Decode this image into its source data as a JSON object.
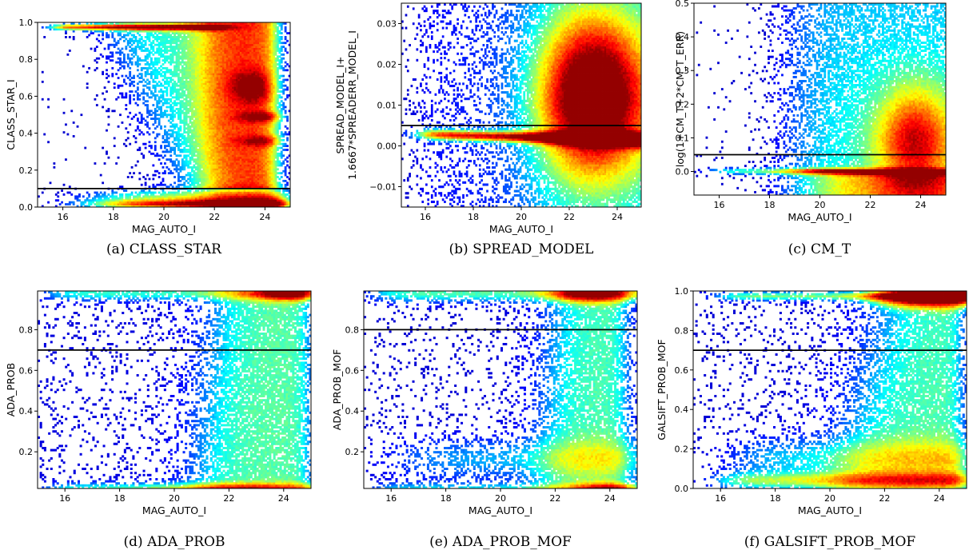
{
  "chart_data": [
    {
      "type": "heatmap",
      "caption": "(a) CLASS_STAR",
      "xlabel": "MAG_AUTO_I",
      "ylabel": [
        "CLASS_STAR_I"
      ],
      "xlim": [
        15,
        25
      ],
      "ylim": [
        0,
        1.0
      ],
      "xticks": [
        {
          "value": 16,
          "label": "16"
        },
        {
          "value": 18,
          "label": "18"
        },
        {
          "value": 20,
          "label": "20"
        },
        {
          "value": 22,
          "label": "22"
        },
        {
          "value": 24,
          "label": "24"
        }
      ],
      "yticks": [
        {
          "value": 0.0,
          "label": "0.0"
        },
        {
          "value": 0.2,
          "label": "0.2"
        },
        {
          "value": 0.4,
          "label": "0.4"
        },
        {
          "value": 0.6,
          "label": "0.6"
        },
        {
          "value": 0.8,
          "label": "0.8"
        },
        {
          "value": 1.0,
          "label": "1.0"
        }
      ],
      "cut_line": 0.1,
      "colormap": "jet",
      "density_pattern": "class_star"
    },
    {
      "type": "heatmap",
      "caption": "(b) SPREAD_MODEL",
      "xlabel": "MAG_AUTO_I",
      "ylabel": [
        "SPREAD_MODEL_I+",
        "1.6667*SPREADERR_MODEL_I"
      ],
      "xlim": [
        15,
        25
      ],
      "ylim": [
        -0.015,
        0.035
      ],
      "xticks": [
        {
          "value": 16,
          "label": "16"
        },
        {
          "value": 18,
          "label": "18"
        },
        {
          "value": 20,
          "label": "20"
        },
        {
          "value": 22,
          "label": "22"
        },
        {
          "value": 24,
          "label": "24"
        }
      ],
      "yticks": [
        {
          "value": -0.01,
          "label": "−0.01"
        },
        {
          "value": 0.0,
          "label": "0.00"
        },
        {
          "value": 0.01,
          "label": "0.01"
        },
        {
          "value": 0.02,
          "label": "0.02"
        },
        {
          "value": 0.03,
          "label": "0.03"
        }
      ],
      "cut_line": 0.005,
      "colormap": "jet",
      "density_pattern": "spread_model"
    },
    {
      "type": "heatmap",
      "caption": "(c) CM_T",
      "xlabel": "MAG_AUTO_I",
      "ylabel": [
        "log(1+CM_T+2*CM_T_ERR)"
      ],
      "xlim": [
        15,
        25
      ],
      "ylim": [
        -0.07,
        0.5
      ],
      "xticks": [
        {
          "value": 16,
          "label": "16"
        },
        {
          "value": 18,
          "label": "18"
        },
        {
          "value": 20,
          "label": "20"
        },
        {
          "value": 22,
          "label": "22"
        },
        {
          "value": 24,
          "label": "24"
        }
      ],
      "yticks": [
        {
          "value": 0.0,
          "label": "0.0"
        },
        {
          "value": 0.1,
          "label": "0.1"
        },
        {
          "value": 0.2,
          "label": "0.2"
        },
        {
          "value": 0.3,
          "label": "0.3"
        },
        {
          "value": 0.4,
          "label": "0.4"
        },
        {
          "value": 0.5,
          "label": "0.5"
        }
      ],
      "cut_line": 0.05,
      "colormap": "jet",
      "density_pattern": "cm_t"
    },
    {
      "type": "heatmap",
      "caption": "(d) ADA_PROB",
      "xlabel": "MAG_AUTO_I",
      "ylabel": [
        "ADA_PROB"
      ],
      "xlim": [
        15,
        25
      ],
      "ylim": [
        0.02,
        0.99
      ],
      "xticks": [
        {
          "value": 16,
          "label": "16"
        },
        {
          "value": 18,
          "label": "18"
        },
        {
          "value": 20,
          "label": "20"
        },
        {
          "value": 22,
          "label": "22"
        },
        {
          "value": 24,
          "label": "24"
        }
      ],
      "yticks": [
        {
          "value": 0.2,
          "label": "0.2"
        },
        {
          "value": 0.4,
          "label": "0.4"
        },
        {
          "value": 0.6,
          "label": "0.6"
        },
        {
          "value": 0.8,
          "label": "0.8"
        }
      ],
      "cut_line": 0.7,
      "colormap": "jet",
      "density_pattern": "ada_prob"
    },
    {
      "type": "heatmap",
      "caption": "(e) ADA_PROB_MOF",
      "xlabel": "MAG_AUTO_I",
      "ylabel": [
        "ADA_PROB_MOF"
      ],
      "xlim": [
        15,
        25
      ],
      "ylim": [
        0.02,
        0.99
      ],
      "xticks": [
        {
          "value": 16,
          "label": "16"
        },
        {
          "value": 18,
          "label": "18"
        },
        {
          "value": 20,
          "label": "20"
        },
        {
          "value": 22,
          "label": "22"
        },
        {
          "value": 24,
          "label": "24"
        }
      ],
      "yticks": [
        {
          "value": 0.2,
          "label": "0.2"
        },
        {
          "value": 0.4,
          "label": "0.4"
        },
        {
          "value": 0.6,
          "label": "0.6"
        },
        {
          "value": 0.8,
          "label": "0.8"
        }
      ],
      "cut_line": 0.8,
      "colormap": "jet",
      "density_pattern": "ada_prob_mof"
    },
    {
      "type": "heatmap",
      "caption": "(f) GALSIFT_PROB_MOF",
      "xlabel": "MAG_AUTO_I",
      "ylabel": [
        "GALSIFT_PROB_MOF"
      ],
      "xlim": [
        15,
        25
      ],
      "ylim": [
        0.0,
        1.0
      ],
      "xticks": [
        {
          "value": 16,
          "label": "16"
        },
        {
          "value": 18,
          "label": "18"
        },
        {
          "value": 20,
          "label": "20"
        },
        {
          "value": 22,
          "label": "22"
        },
        {
          "value": 24,
          "label": "24"
        }
      ],
      "yticks": [
        {
          "value": 0.0,
          "label": "0.0"
        },
        {
          "value": 0.2,
          "label": "0.2"
        },
        {
          "value": 0.4,
          "label": "0.4"
        },
        {
          "value": 0.6,
          "label": "0.6"
        },
        {
          "value": 0.8,
          "label": "0.8"
        },
        {
          "value": 1.0,
          "label": "1.0"
        }
      ],
      "cut_line": 0.7,
      "colormap": "jet",
      "density_pattern": "galsift"
    }
  ]
}
